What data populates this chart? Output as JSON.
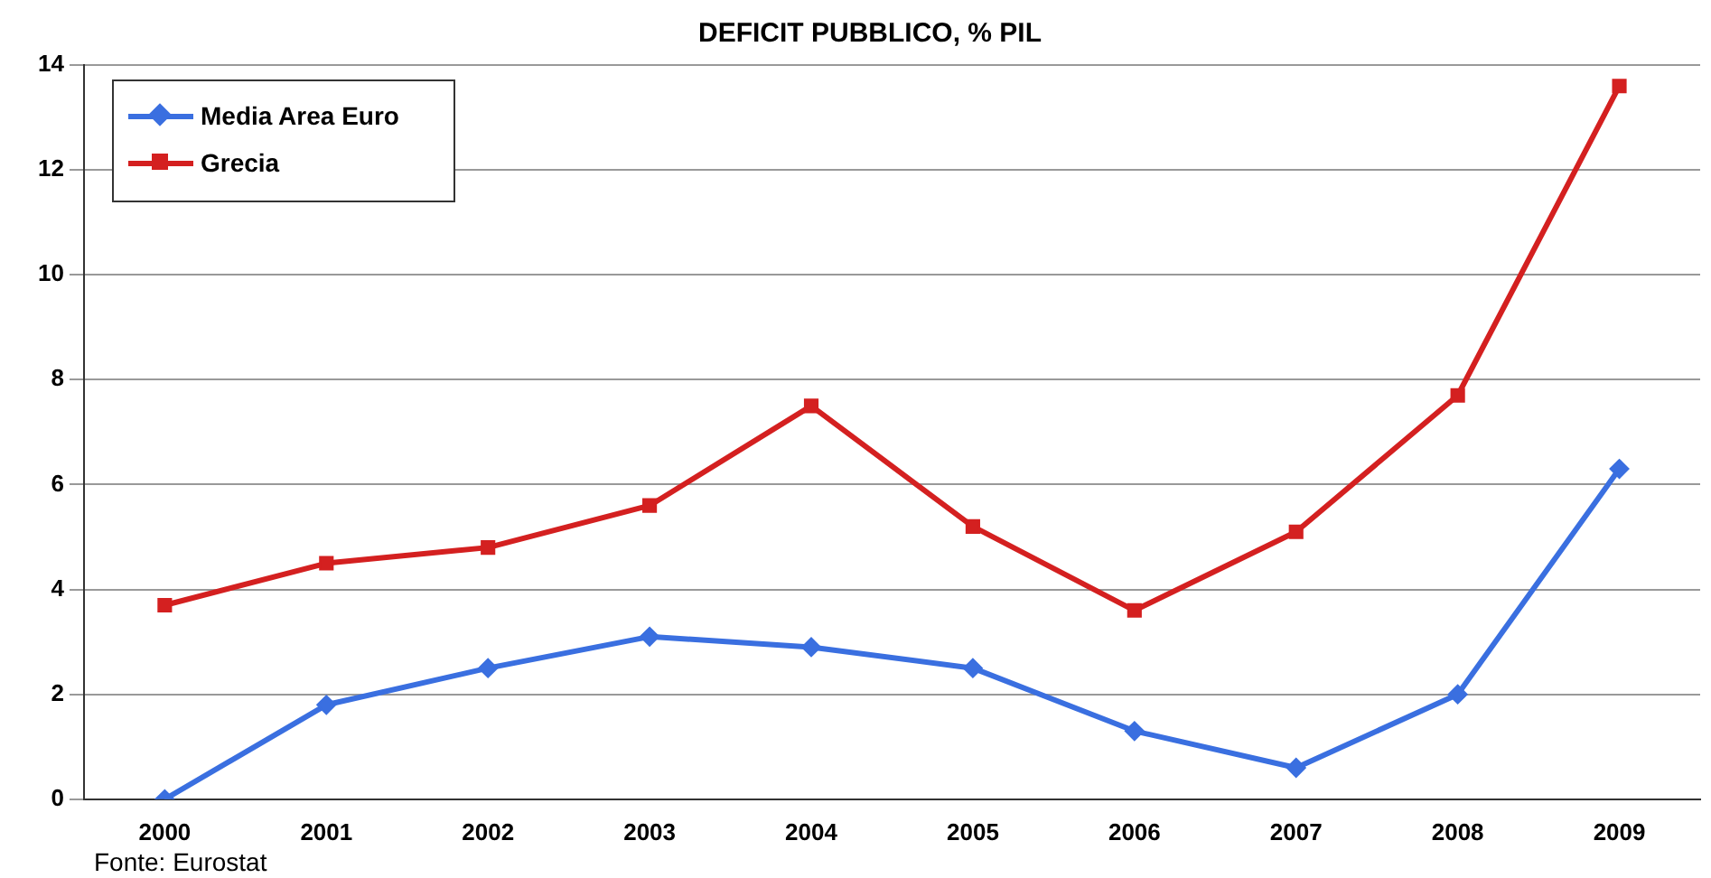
{
  "chart_data": {
    "type": "line",
    "title": "DEFICIT PUBBLICO, % PIL",
    "categories": [
      "2000",
      "2001",
      "2002",
      "2003",
      "2004",
      "2005",
      "2006",
      "2007",
      "2008",
      "2009"
    ],
    "series": [
      {
        "name": "Media Area Euro",
        "color": "#3a6fe0",
        "marker": "diamond",
        "values": [
          0,
          1.8,
          2.5,
          3.1,
          2.9,
          2.5,
          1.3,
          0.6,
          2.0,
          6.3
        ]
      },
      {
        "name": "Grecia",
        "color": "#d42020",
        "marker": "square",
        "values": [
          3.7,
          4.5,
          4.8,
          5.6,
          7.5,
          5.2,
          3.6,
          5.1,
          7.7,
          13.6
        ]
      }
    ],
    "ylim": [
      0,
      14
    ],
    "yticks": [
      0,
      2,
      4,
      6,
      8,
      10,
      12,
      14
    ],
    "grid": "y",
    "legend": "top left",
    "line_style": "solid",
    "annotations": [
      "Fonte: Eurostat"
    ]
  }
}
